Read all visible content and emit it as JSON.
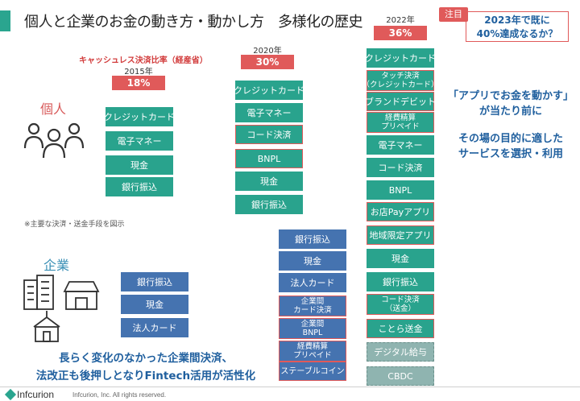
{
  "title": "個人と企業のお金の動き方・動かし方　多様化の歴史",
  "note_badge": "注目",
  "callout": [
    "2023年で既に",
    "40%達成なるか？"
  ],
  "cashless_label": "キャッシュレス決済比率（経産省）",
  "years": [
    {
      "year": "2015年",
      "pct": "18%"
    },
    {
      "year": "2020年",
      "pct": "30%"
    },
    {
      "year": "2022年",
      "pct": "36%"
    }
  ],
  "sections": {
    "individual": "個人",
    "corporate": "企業"
  },
  "note_small": "※主要な決済・送金手段を図示",
  "individual_2015": [
    "クレジットカード",
    "電子マネー",
    "現金",
    "銀行振込"
  ],
  "individual_2020": [
    "クレジットカード",
    "電子マネー",
    "コード決済",
    "BNPL",
    "現金",
    "銀行振込"
  ],
  "col2022": [
    "クレジットカード",
    "タッチ決済|（クレジットカード）",
    "ブランドデビット",
    "経費精算|プリペイド",
    "電子マネー",
    "コード決済",
    "BNPL",
    "お店Payアプリ",
    "地域限定アプリ",
    "現金",
    "銀行振込",
    "コード決済|（送金）",
    "ことら送金",
    "デジタル給与",
    "CBDC"
  ],
  "corporate_2015": [
    "銀行振込",
    "現金",
    "法人カード"
  ],
  "corporate_2020": [
    "銀行振込",
    "現金",
    "法人カード",
    "企業間|カード決済",
    "企業間|BNPL",
    "経費精算|プリペイド",
    "ステーブルコイン"
  ],
  "right_msg": [
    "「アプリでお金を動かす」",
    "が当たり前に"
  ],
  "right_msg2": [
    "その場の目的に適した",
    "サービスを選択・利用"
  ],
  "bottom_msg": [
    "長らく変化のなかった企業間決済、",
    "法改正も後押しとなりFintech活用が活性化"
  ],
  "logo": "Infcurion",
  "copyright": "Infcurion, Inc.  All rights reserved.",
  "colors": {
    "teal": "#29a38d",
    "navy": "#4573b0",
    "red": "#e05a5a",
    "blue_text": "#1f5f9e"
  }
}
